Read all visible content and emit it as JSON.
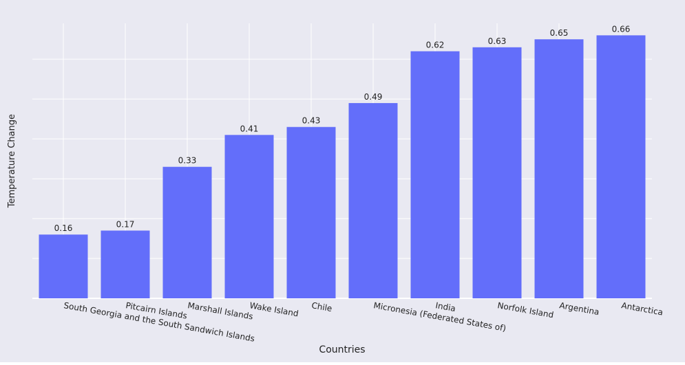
{
  "chart_data": {
    "type": "bar",
    "categories": [
      "South Georgia and the South Sandwich Islands",
      "Pitcairn Islands",
      "Marshall Islands",
      "Wake Island",
      "Chile",
      "Micronesia (Federated States of)",
      "India",
      "Norfolk Island",
      "Argentina",
      "Antarctica"
    ],
    "values": [
      0.16,
      0.17,
      0.33,
      0.41,
      0.43,
      0.49,
      0.62,
      0.63,
      0.65,
      0.66
    ],
    "value_labels": [
      "0.16",
      "0.17",
      "0.33",
      "0.41",
      "0.43",
      "0.49",
      "0.62",
      "0.63",
      "0.65",
      "0.66"
    ],
    "xlabel": "Countries",
    "ylabel": "Temperature Change",
    "ylim": [
      0,
      0.69
    ],
    "grid": true,
    "colors": {
      "bar": "#636efa",
      "background": "#e5ecf6",
      "paper": "#e9e9f2",
      "grid": "#ffffff",
      "text": "#2a3f5f"
    }
  }
}
